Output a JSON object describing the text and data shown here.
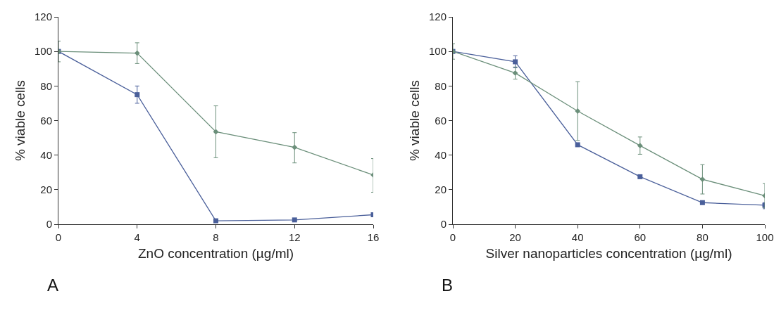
{
  "chart_data": [
    {
      "type": "line",
      "xlabel": "ZnO concentration (µg/ml)",
      "ylabel": "% viable cells",
      "annotations": [
        "A"
      ],
      "x": [
        0,
        4,
        8,
        12,
        16
      ],
      "xlim": [
        0,
        16
      ],
      "xticks": [
        0,
        4,
        8,
        12,
        16
      ],
      "ylim": [
        0,
        120
      ],
      "yticks": [
        0,
        20,
        40,
        60,
        80,
        100,
        120
      ],
      "series": [
        {
          "color": "#6b8f7a",
          "marker": "diamond",
          "values": [
            100,
            99,
            53.5,
            44.5,
            28.5
          ],
          "errors": [
            [
              94,
              106
            ],
            [
              93,
              105
            ],
            [
              38.5,
              68.5
            ],
            [
              35.5,
              53
            ],
            [
              18.5,
              38
            ]
          ]
        },
        {
          "color": "#4a5f9a",
          "marker": "square",
          "values": [
            100,
            75,
            2,
            2.5,
            5.5
          ],
          "errors": [
            null,
            [
              70,
              80
            ],
            null,
            null,
            null
          ]
        }
      ]
    },
    {
      "type": "line",
      "xlabel": "Silver nanoparticles concentration (µg/ml)",
      "ylabel": "% viable cells",
      "annotations": [
        "B"
      ],
      "x": [
        0,
        20,
        40,
        60,
        80,
        100
      ],
      "xlim": [
        0,
        100
      ],
      "xticks": [
        0,
        20,
        40,
        60,
        80,
        100
      ],
      "ylim": [
        0,
        120
      ],
      "yticks": [
        0,
        20,
        40,
        60,
        80,
        100,
        120
      ],
      "series": [
        {
          "color": "#6b8f7a",
          "marker": "diamond",
          "values": [
            100,
            87.5,
            65.5,
            45.5,
            26,
            16.5
          ],
          "errors": [
            [
              95.5,
              104.5
            ],
            [
              84,
              91
            ],
            [
              48.5,
              82.5
            ],
            [
              40.5,
              50.5
            ],
            [
              17.5,
              34.5
            ],
            [
              9.5,
              23.5
            ]
          ]
        },
        {
          "color": "#4a5f9a",
          "marker": "square",
          "values": [
            100,
            94,
            46,
            27.5,
            12.5,
            11
          ],
          "errors": [
            null,
            [
              90.5,
              97.5
            ],
            null,
            null,
            null,
            [
              9,
              12.5
            ]
          ]
        }
      ]
    }
  ]
}
